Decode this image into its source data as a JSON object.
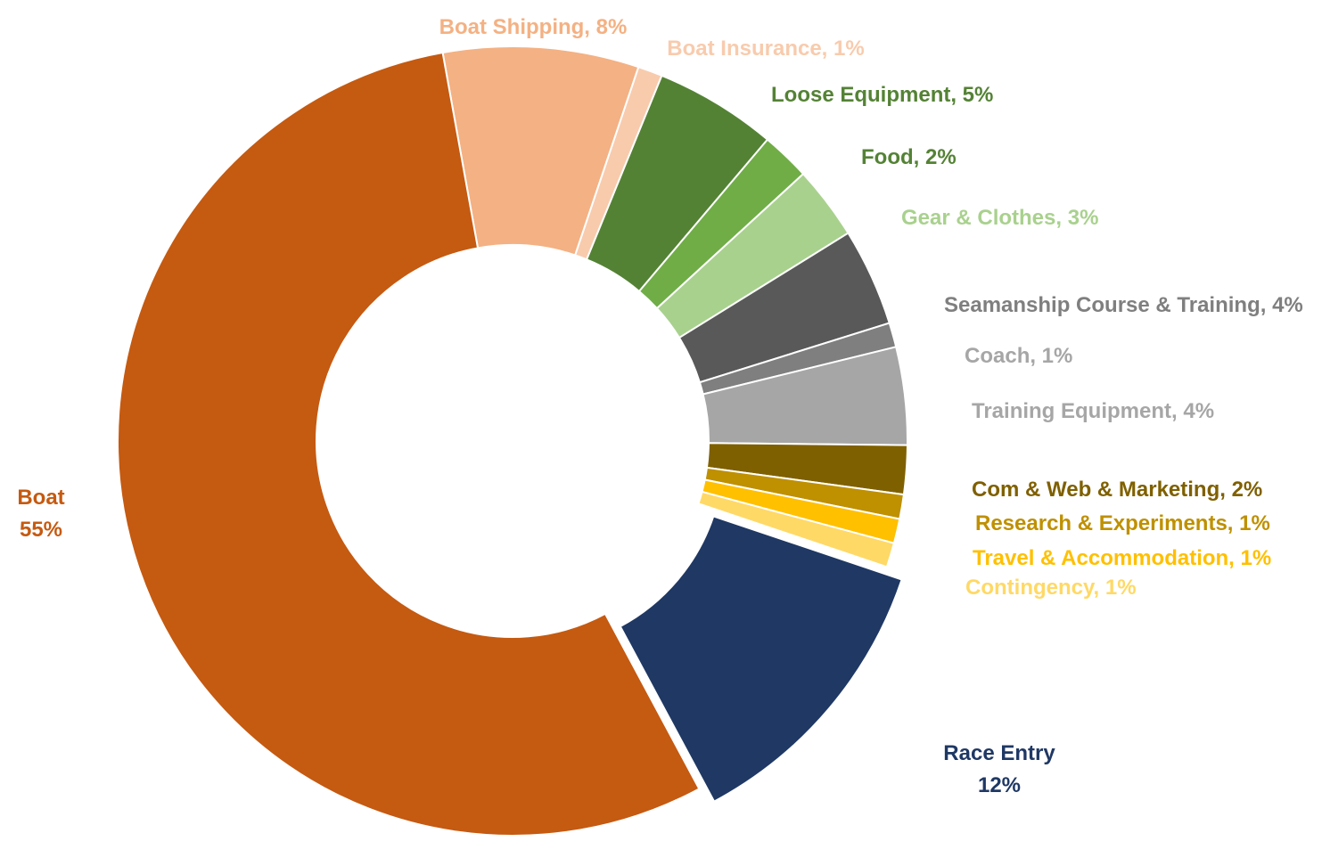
{
  "chart_data": {
    "type": "pie",
    "variant": "donut",
    "title": "",
    "slices": [
      {
        "name": "Boat Shipping",
        "label_line1": "Boat Shipping, 8%",
        "label_line2": "",
        "value": 8,
        "color": "#F4B183",
        "exploded": false
      },
      {
        "name": "Boat Insurance",
        "label_line1": "Boat Insurance, 1%",
        "label_line2": "",
        "value": 1,
        "color": "#F8CBAD",
        "exploded": false
      },
      {
        "name": "Loose Equipment",
        "label_line1": "Loose Equipment, 5%",
        "label_line2": "",
        "value": 5,
        "color": "#548235",
        "exploded": false
      },
      {
        "name": "Food",
        "label_line1": "Food, 2%",
        "label_line2": "",
        "value": 2,
        "color": "#70AD47",
        "exploded": false
      },
      {
        "name": "Gear & Clothes",
        "label_line1": "Gear & Clothes, 3%",
        "label_line2": "",
        "value": 3,
        "color": "#A9D18E",
        "exploded": false
      },
      {
        "name": "Seamanship Course & Training",
        "label_line1": "Seamanship Course & Training, 4%",
        "label_line2": "",
        "value": 4,
        "color": "#595959",
        "exploded": false
      },
      {
        "name": "Coach",
        "label_line1": "Coach, 1%",
        "label_line2": "",
        "value": 1,
        "color": "#7F7F7F",
        "exploded": false
      },
      {
        "name": "Training Equipment",
        "label_line1": "Training Equipment, 4%",
        "label_line2": "",
        "value": 4,
        "color": "#A6A6A6",
        "exploded": false
      },
      {
        "name": "Com & Web & Marketing",
        "label_line1": "Com & Web & Marketing, 2%",
        "label_line2": "",
        "value": 2,
        "color": "#7F6000",
        "exploded": false
      },
      {
        "name": "Research & Experiments",
        "label_line1": "Research & Experiments, 1%",
        "label_line2": "",
        "value": 1,
        "color": "#BF9000",
        "exploded": false
      },
      {
        "name": "Travel & Accommodation",
        "label_line1": "Travel & Accommodation, 1%",
        "label_line2": "",
        "value": 1,
        "color": "#FFC000",
        "exploded": false
      },
      {
        "name": "Contingency",
        "label_line1": "Contingency, 1%",
        "label_line2": "",
        "value": 1,
        "color": "#FFD966",
        "exploded": false
      },
      {
        "name": "Race Entry",
        "label_line1": "Race Entry",
        "label_line2": "12%",
        "value": 12,
        "color": "#1F3864",
        "exploded": true
      },
      {
        "name": "Boat",
        "label_line1": "Boat",
        "label_line2": "55%",
        "value": 55,
        "color": "#C55A11",
        "exploded": false
      }
    ],
    "label_colors": {
      "Boat Shipping": "#F4B183",
      "Boat Insurance": "#F8CBAD",
      "Loose Equipment": "#548235",
      "Food": "#548235",
      "Gear & Clothes": "#A9D18E",
      "Seamanship Course & Training": "#7F7F7F",
      "Coach": "#A6A6A6",
      "Training Equipment": "#A6A6A6",
      "Com & Web & Marketing": "#7F6000",
      "Research & Experiments": "#BF9000",
      "Travel & Accommodation": "#FFC000",
      "Contingency": "#FFD966",
      "Race Entry": "#1F3864",
      "Boat": "#C55A11"
    },
    "legend": "none"
  }
}
